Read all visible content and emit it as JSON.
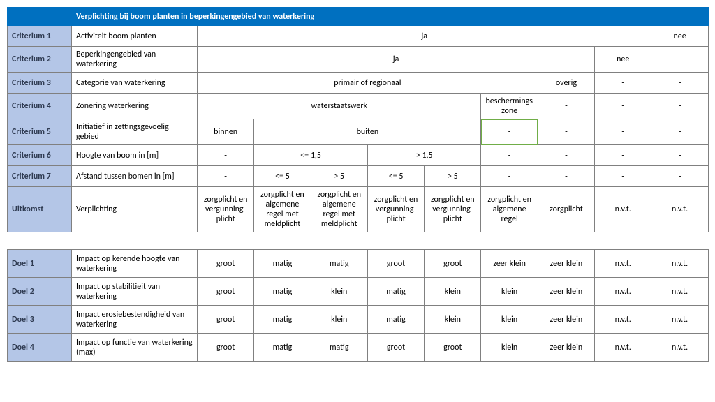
{
  "colors": {
    "header_bg": "#0070c0",
    "header_text": "#ffffff",
    "label_bg": "#b4c6e7",
    "border": "#808080",
    "green_border": "#70ad47",
    "text": "#000000",
    "background": "#ffffff"
  },
  "fonts": {
    "family": "Calibri, Arial, sans-serif",
    "size_pt": 9
  },
  "header": {
    "title": "Verplichting bij boom planten in beperkingengebied van waterkering"
  },
  "criteria": {
    "c1": {
      "label": "Criterium 1",
      "desc": "Activiteit boom planten",
      "v_ja": "ja",
      "v_nee": "nee"
    },
    "c2": {
      "label": "Criterium 2",
      "desc": "Beperkingengebied van waterkering",
      "v_ja": "ja",
      "v_nee": "nee",
      "v_dash": "-"
    },
    "c3": {
      "label": "Criterium 3",
      "desc": "Categorie van waterkering",
      "v_primair": "primair of regionaal",
      "v_overig": "overig",
      "v_dash": "-"
    },
    "c4": {
      "label": "Criterium 4",
      "desc": "Zonering waterkering",
      "v_water": "waterstaatswerk",
      "v_besch": "beschermings-zone",
      "v_dash": "-"
    },
    "c5": {
      "label": "Criterium 5",
      "desc": "Initiatief in zettingsgevoelig gebied",
      "v_binnen": "binnen",
      "v_buiten": "buiten",
      "v_dash": "-"
    },
    "c6": {
      "label": "Criterium 6",
      "desc": "Hoogte van boom in [m]",
      "v_dash": "-",
      "v_le15": "<= 1,5",
      "v_gt15": "> 1,5"
    },
    "c7": {
      "label": "Criterium 7",
      "desc": "Afstand tussen bomen in [m]",
      "v_dash": "-",
      "v_le5": "<= 5",
      "v_gt5": "> 5"
    }
  },
  "uitkomst": {
    "label": "Uitkomst",
    "desc": "Verplichting",
    "v1": "zorgplicht en vergunning-plicht",
    "v2": "zorgplicht en algemene regel met meldplicht",
    "v3": "zorgplicht en algemene regel met meldplicht",
    "v4": "zorgplicht en vergunning-plicht",
    "v5": "zorgplicht en vergunning-plicht",
    "v6": "zorgplicht en algemene regel",
    "v7": "zorgplicht",
    "v8": "n.v.t.",
    "v9": "n.v.t."
  },
  "doelen": {
    "d1": {
      "label": "Doel 1",
      "desc": "Impact op kerende hoogte van waterkering",
      "v1": "groot",
      "v2": "matig",
      "v3": "matig",
      "v4": "groot",
      "v5": "groot",
      "v6": "zeer klein",
      "v7": "zeer klein",
      "v8": "n.v.t.",
      "v9": "n.v.t."
    },
    "d2": {
      "label": "Doel 2",
      "desc": "Impact op stabilitieit van waterkering",
      "v1": "groot",
      "v2": "matig",
      "v3": "klein",
      "v4": "matig",
      "v5": "klein",
      "v6": "klein",
      "v7": "zeer klein",
      "v8": "n.v.t.",
      "v9": "n.v.t."
    },
    "d3": {
      "label": "Doel 3",
      "desc": "Impact erosiebestendigheid van  waterkering",
      "v1": "groot",
      "v2": "matig",
      "v3": "klein",
      "v4": "matig",
      "v5": "klein",
      "v6": "klein",
      "v7": "zeer klein",
      "v8": "n.v.t.",
      "v9": "n.v.t."
    },
    "d4": {
      "label": "Doel 4",
      "desc": "Impact op functie van waterkering (max)",
      "v1": "groot",
      "v2": "matig",
      "v3": "matig",
      "v4": "groot",
      "v5": "groot",
      "v6": "klein",
      "v7": "zeer klein",
      "v8": "n.v.t.",
      "v9": "n.v.t."
    }
  }
}
